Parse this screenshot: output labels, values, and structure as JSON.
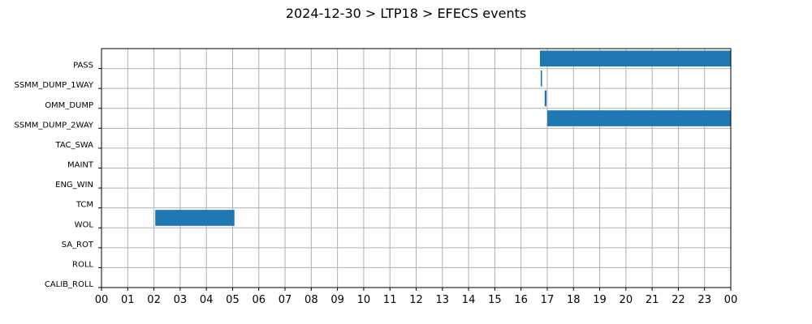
{
  "chart_data": {
    "type": "gantt",
    "title": "2024-12-30 > LTP18 > EFECS events",
    "xlabel": "",
    "ylabel": "",
    "x_range_hours": [
      0,
      24
    ],
    "x_tick_labels": [
      "00",
      "01",
      "02",
      "03",
      "04",
      "05",
      "06",
      "07",
      "08",
      "09",
      "10",
      "11",
      "12",
      "13",
      "14",
      "15",
      "16",
      "17",
      "18",
      "19",
      "20",
      "21",
      "22",
      "23",
      "00"
    ],
    "categories": [
      "PASS",
      "SSMM_DUMP_1WAY",
      "OMM_DUMP",
      "SSMM_DUMP_2WAY",
      "TAC_SWA",
      "MAINT",
      "ENG_WIN",
      "TCM",
      "WOL",
      "SA_ROT",
      "ROLL",
      "CALIB_ROLL"
    ],
    "grid": true,
    "bar_color": "#1f77b4",
    "events": [
      {
        "category": "PASS",
        "start": 16.72,
        "end": 24.0
      },
      {
        "category": "SSMM_DUMP_1WAY",
        "start": 16.75,
        "end": 16.8
      },
      {
        "category": "OMM_DUMP",
        "start": 16.9,
        "end": 16.97
      },
      {
        "category": "SSMM_DUMP_2WAY",
        "start": 17.0,
        "end": 24.0
      },
      {
        "category": "WOL",
        "start": 2.05,
        "end": 5.07
      }
    ]
  }
}
